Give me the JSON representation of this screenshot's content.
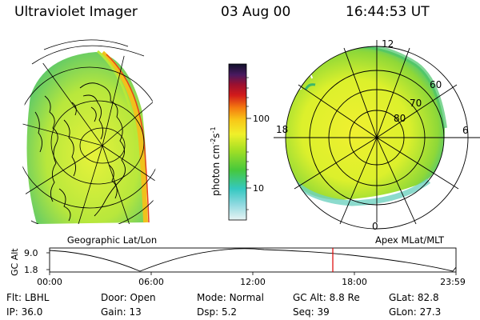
{
  "header": {
    "instrument": "Ultraviolet Imager",
    "date": "03 Aug 00",
    "time": "16:44:53 UT"
  },
  "colorbar": {
    "label": "photon cm",
    "label_sup1": "-2",
    "label_mid": "s",
    "label_sup2": "-1",
    "ticks": [
      "100",
      "10"
    ]
  },
  "left_panel": {
    "caption": "Geographic Lat/Lon"
  },
  "right_panel": {
    "caption": "Apex MLat/MLT",
    "mlt_labels": {
      "top": "12",
      "left": "18",
      "right": "6",
      "bottom": "0"
    },
    "lat_labels": [
      "60",
      "70",
      "80"
    ]
  },
  "altitude_plot": {
    "ylabel": "GC Alt",
    "yticks": [
      "9.0",
      "1.8"
    ],
    "xticks": [
      "00:00",
      "06:00",
      "12:00",
      "18:00",
      "23:59"
    ],
    "marker_color": "#dd0000"
  },
  "info": {
    "row1": [
      {
        "key": "Flt:",
        "value": "LBHL"
      },
      {
        "key": "Door:",
        "value": "Open"
      },
      {
        "key": "Mode:",
        "value": "Normal"
      },
      {
        "key": "GC Alt:",
        "value": "8.8 Re"
      },
      {
        "key": "GLat:",
        "value": "82.8"
      }
    ],
    "row2": [
      {
        "key": "IP:",
        "value": "36.0"
      },
      {
        "key": "Gain:",
        "value": "13"
      },
      {
        "key": "Dsp:",
        "value": "5.2"
      },
      {
        "key": "Seq:",
        "value": "39"
      },
      {
        "key": "GLon:",
        "value": "27.3"
      }
    ]
  }
}
